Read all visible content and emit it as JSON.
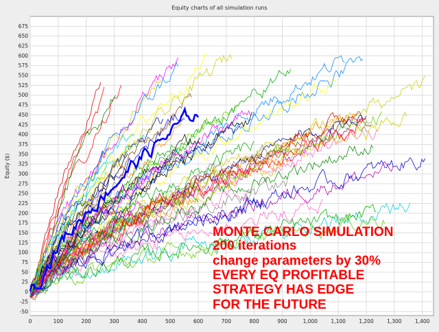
{
  "chart_data": {
    "type": "line",
    "title": "Equity charts of all simulation runs",
    "xlabel": "",
    "ylabel": "Equity ($)",
    "xlim": [
      0,
      1440
    ],
    "ylim": [
      -60,
      700
    ],
    "x_ticks": [
      0,
      100,
      200,
      300,
      400,
      500,
      600,
      700,
      800,
      900,
      1000,
      1100,
      1200,
      1300,
      1400
    ],
    "x_tick_labels": [
      "0",
      "100",
      "200",
      "300",
      "400",
      "500",
      "600",
      "700",
      "800",
      "900",
      "1,000",
      "1,100",
      "1,200",
      "1,300",
      "1,400"
    ],
    "y_ticks": [
      -50,
      -25,
      0,
      25,
      50,
      75,
      100,
      125,
      150,
      175,
      200,
      225,
      250,
      275,
      300,
      325,
      350,
      375,
      400,
      425,
      450,
      475,
      500,
      525,
      550,
      575,
      600,
      625,
      650,
      675
    ],
    "grid": true,
    "legend": "none",
    "series_colors": [
      "#ff0000",
      "#00aa00",
      "#0000cc",
      "#ff00ff",
      "#00cccc",
      "#cccc00",
      "#ff8800",
      "#000000",
      "#888888",
      "#008800",
      "#aa00aa",
      "#0088ff",
      "#cc0000",
      "#66cc00",
      "#ff66cc",
      "#ffff00",
      "#884400",
      "#000088"
    ],
    "highlight_color": "#0000ff",
    "series_count": 60,
    "x_extent_range": [
      230,
      1440
    ],
    "start_value": 0,
    "end_value_range": [
      180,
      620
    ]
  },
  "overlay_text": {
    "lines": [
      "MONTE CARLO SIMULATION",
      "200 iterations",
      "change parameters by 30%",
      "EVERY EQ PROFITABLE",
      "STRATEGY HAS EDGE",
      "FOR THE FUTURE"
    ]
  }
}
